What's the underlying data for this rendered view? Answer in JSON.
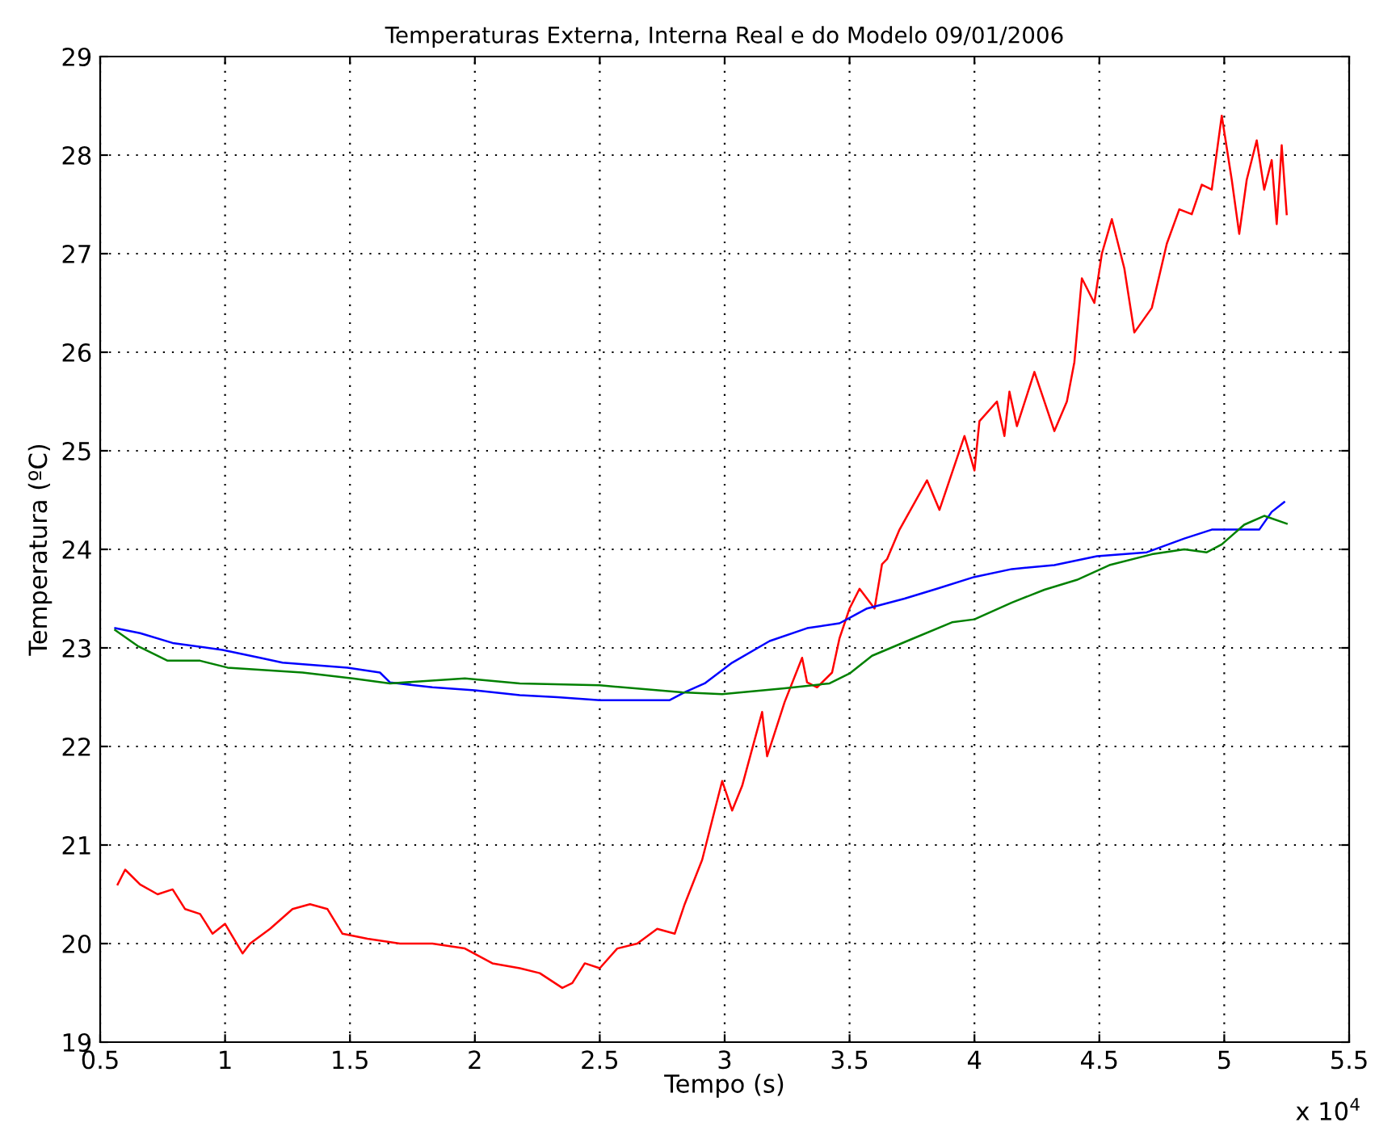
{
  "chart_data": {
    "type": "line",
    "title": "Temperaturas Externa, Interna Real e do Modelo 09/01/2006",
    "xlabel": "Tempo (s)",
    "ylabel": "Temperatura (ºC)",
    "annotations": [
      "x 10$^{4}$"
    ],
    "xlim": [
      0.5,
      5.5
    ],
    "xticks": [
      0.5,
      1,
      1.5,
      2,
      2.5,
      3,
      3.5,
      4,
      4.5,
      5,
      5.5
    ],
    "ylim": [
      19,
      29
    ],
    "yticks": [
      19,
      20,
      21,
      22,
      23,
      24,
      25,
      26,
      27,
      28,
      29
    ],
    "grid": true,
    "line_style": "solid",
    "marker": "none",
    "series": [
      {
        "color": "#ff0000",
        "x": [
          0.57,
          0.6,
          0.66,
          0.73,
          0.79,
          0.84,
          0.9,
          0.95,
          1.0,
          1.07,
          1.1,
          1.18,
          1.27,
          1.34,
          1.41,
          1.47,
          1.57,
          1.7,
          1.83,
          1.96,
          2.07,
          2.18,
          2.26,
          2.35,
          2.39,
          2.44,
          2.5,
          2.57,
          2.65,
          2.73,
          2.8,
          2.84,
          2.91,
          2.96,
          2.99,
          3.03,
          3.07,
          3.15,
          3.17,
          3.24,
          3.31,
          3.33,
          3.37,
          3.43,
          3.46,
          3.5,
          3.54,
          3.6,
          3.63,
          3.65,
          3.7,
          3.81,
          3.86,
          3.96,
          4.0,
          4.02,
          4.09,
          4.12,
          4.14,
          4.17,
          4.24,
          4.32,
          4.37,
          4.4,
          4.43,
          4.48,
          4.51,
          4.55,
          4.6,
          4.64,
          4.71,
          4.77,
          4.82,
          4.87,
          4.91,
          4.95,
          4.99,
          5.03,
          5.06,
          5.09,
          5.13,
          5.16,
          5.19,
          5.21,
          5.23,
          5.25
        ],
        "values": [
          20.6,
          20.75,
          20.6,
          20.5,
          20.55,
          20.35,
          20.3,
          20.1,
          20.2,
          19.9,
          20.0,
          20.15,
          20.35,
          20.4,
          20.35,
          20.1,
          20.05,
          20.0,
          20.0,
          19.95,
          19.8,
          19.75,
          19.7,
          19.55,
          19.6,
          19.8,
          19.75,
          19.95,
          20.0,
          20.15,
          20.1,
          20.4,
          20.85,
          21.35,
          21.65,
          21.35,
          21.6,
          22.35,
          21.9,
          22.45,
          22.9,
          22.65,
          22.6,
          22.75,
          23.1,
          23.4,
          23.6,
          23.4,
          23.85,
          23.9,
          24.2,
          24.7,
          24.4,
          25.15,
          24.8,
          25.3,
          25.5,
          25.15,
          25.6,
          25.25,
          25.8,
          25.2,
          25.5,
          25.9,
          26.75,
          26.5,
          27.0,
          27.35,
          26.85,
          26.2,
          26.45,
          27.1,
          27.45,
          27.4,
          27.7,
          27.65,
          28.4,
          27.75,
          27.2,
          27.75,
          28.15,
          27.65,
          27.95,
          27.3,
          28.1,
          27.4
        ]
      },
      {
        "color": "#0000ff",
        "x": [
          0.56,
          0.66,
          0.79,
          0.99,
          1.14,
          1.23,
          1.49,
          1.62,
          1.66,
          1.83,
          2.0,
          2.18,
          2.33,
          2.5,
          2.78,
          2.84,
          2.92,
          3.03,
          3.18,
          3.33,
          3.46,
          3.57,
          3.72,
          3.85,
          4.0,
          4.15,
          4.32,
          4.49,
          4.69,
          4.84,
          4.95,
          5.14,
          5.19,
          5.24
        ],
        "values": [
          23.2,
          23.15,
          23.05,
          22.98,
          22.9,
          22.85,
          22.8,
          22.75,
          22.65,
          22.6,
          22.57,
          22.52,
          22.5,
          22.47,
          22.47,
          22.55,
          22.64,
          22.85,
          23.07,
          23.2,
          23.25,
          23.4,
          23.5,
          23.6,
          23.72,
          23.8,
          23.84,
          23.93,
          23.97,
          24.11,
          24.2,
          24.2,
          24.38,
          24.48
        ]
      },
      {
        "color": "#008000",
        "x": [
          0.56,
          0.65,
          0.77,
          0.9,
          1.01,
          1.31,
          1.51,
          1.66,
          1.96,
          2.18,
          2.5,
          2.83,
          2.99,
          3.24,
          3.42,
          3.5,
          3.59,
          3.74,
          3.91,
          4.0,
          4.15,
          4.28,
          4.41,
          4.54,
          4.71,
          4.84,
          4.93,
          4.99,
          5.08,
          5.16,
          5.25
        ],
        "values": [
          23.18,
          23.02,
          22.87,
          22.87,
          22.8,
          22.75,
          22.69,
          22.64,
          22.69,
          22.64,
          22.62,
          22.55,
          22.53,
          22.59,
          22.64,
          22.74,
          22.92,
          23.08,
          23.26,
          23.29,
          23.46,
          23.59,
          23.69,
          23.84,
          23.95,
          24.0,
          23.97,
          24.05,
          24.25,
          24.34,
          24.26
        ]
      }
    ]
  }
}
